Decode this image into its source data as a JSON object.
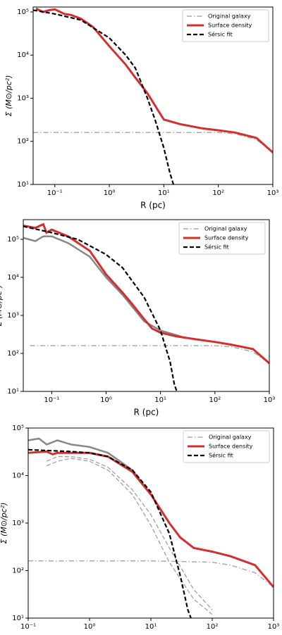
{
  "chart_data": [
    {
      "type": "line",
      "xlabel": "R (pc)",
      "ylabel": "Σ (M⊙/pc²)",
      "xscale": "log",
      "yscale": "log",
      "xlim": [
        0.04,
        1000
      ],
      "ylim": [
        10,
        130000
      ],
      "xticks": [
        {
          "value": 0.1,
          "label": "10⁻¹"
        },
        {
          "value": 1,
          "label": "10⁰"
        },
        {
          "value": 10,
          "label": "10¹"
        },
        {
          "value": 100,
          "label": "10²"
        },
        {
          "value": 1000,
          "label": "10³"
        }
      ],
      "yticks": [
        {
          "value": 10,
          "label": "10¹"
        },
        {
          "value": 100,
          "label": "10²"
        },
        {
          "value": 1000,
          "label": "10³"
        },
        {
          "value": 10000,
          "label": "10⁴"
        },
        {
          "value": 100000,
          "label": "10⁵"
        }
      ],
      "legend": "upper right",
      "series": [
        {
          "name": "Original galaxy",
          "color": "#aaaaaa",
          "style": "dashdot",
          "width": 1.5,
          "x": [
            0.04,
            1,
            10,
            100,
            200,
            500,
            1000
          ],
          "values": [
            160,
            160,
            160,
            160,
            150,
            110,
            55
          ]
        },
        {
          "name": "Surface density",
          "color": "#d32f2f",
          "style": "solid",
          "width": 3,
          "x": [
            0.045,
            0.06,
            0.08,
            0.1,
            0.15,
            0.2,
            0.3,
            0.5,
            1,
            2,
            3,
            5,
            8,
            10,
            20,
            50,
            100,
            200,
            500,
            1000
          ],
          "values": [
            120000,
            100000,
            110000,
            115000,
            90000,
            85000,
            70000,
            45000,
            16000,
            6000,
            3000,
            1300,
            500,
            320,
            250,
            200,
            180,
            160,
            120,
            55
          ]
        },
        {
          "name": "Sérsic fit",
          "color": "#000000",
          "style": "dashed",
          "width": 2.2,
          "x": [
            0.04,
            0.1,
            0.3,
            1,
            2,
            3,
            5,
            7,
            10,
            13,
            15
          ],
          "values": [
            110000,
            90000,
            65000,
            25000,
            10000,
            5000,
            1000,
            300,
            70,
            18,
            10
          ]
        }
      ]
    },
    {
      "type": "line",
      "xlabel": "R (pc)",
      "ylabel": "Σ (M⊙/pc²)",
      "xscale": "log",
      "yscale": "log",
      "xlim": [
        0.03,
        1000
      ],
      "ylim": [
        10,
        330000
      ],
      "xticks": [
        {
          "value": 0.1,
          "label": "10⁻¹"
        },
        {
          "value": 1,
          "label": "10⁰"
        },
        {
          "value": 10,
          "label": "10¹"
        },
        {
          "value": 100,
          "label": "10²"
        },
        {
          "value": 1000,
          "label": "10³"
        }
      ],
      "yticks": [
        {
          "value": 10,
          "label": "10¹"
        },
        {
          "value": 100,
          "label": "10²"
        },
        {
          "value": 1000,
          "label": "10³"
        },
        {
          "value": 10000,
          "label": "10⁴"
        },
        {
          "value": 100000,
          "label": "10⁵"
        }
      ],
      "legend": "upper right",
      "series": [
        {
          "color": "#888888",
          "style": "solid",
          "width": 2.5,
          "x": [
            0.03,
            0.05,
            0.07,
            0.1,
            0.2,
            0.5,
            1,
            2,
            5,
            10,
            20,
            30
          ],
          "values": [
            110000,
            90000,
            120000,
            120000,
            80000,
            35000,
            10000,
            3500,
            700,
            400,
            300,
            250
          ]
        },
        {
          "name": "Original galaxy",
          "color": "#aaaaaa",
          "style": "dashdot",
          "width": 1.5,
          "x": [
            0.04,
            1,
            10,
            100,
            200,
            500,
            1000
          ],
          "values": [
            160,
            160,
            160,
            160,
            150,
            110,
            55
          ]
        },
        {
          "name": "Surface density",
          "color": "#d32f2f",
          "style": "solid",
          "width": 3,
          "x": [
            0.03,
            0.05,
            0.07,
            0.08,
            0.1,
            0.2,
            0.5,
            1,
            2,
            3,
            5,
            7,
            10,
            20,
            50,
            100,
            200,
            500,
            1000
          ],
          "values": [
            230000,
            200000,
            250000,
            150000,
            180000,
            120000,
            50000,
            12000,
            4000,
            2000,
            800,
            450,
            350,
            280,
            230,
            200,
            170,
            130,
            55
          ]
        },
        {
          "name": "Sérsic fit",
          "color": "#000000",
          "style": "dashed",
          "width": 2.2,
          "x": [
            0.03,
            0.1,
            0.3,
            1,
            2,
            5,
            10,
            15,
            18,
            20
          ],
          "values": [
            220000,
            150000,
            100000,
            40000,
            18000,
            3000,
            400,
            60,
            15,
            10
          ]
        }
      ]
    },
    {
      "type": "line",
      "ylabel": "Σ (M⊙/pc²)",
      "xscale": "log",
      "yscale": "log",
      "xlim": [
        0.1,
        1000
      ],
      "ylim": [
        10,
        100000
      ],
      "xticks": [
        {
          "value": 0.1,
          "label": "10⁻¹"
        },
        {
          "value": 1,
          "label": "10⁰"
        },
        {
          "value": 10,
          "label": "10¹"
        },
        {
          "value": 100,
          "label": "10²"
        },
        {
          "value": 1000,
          "label": "10³"
        }
      ],
      "yticks": [
        {
          "value": 10,
          "label": "10¹"
        },
        {
          "value": 100,
          "label": "10²"
        },
        {
          "value": 1000,
          "label": "10³"
        },
        {
          "value": 10000,
          "label": "10⁴"
        },
        {
          "value": 100000,
          "label": "10⁵"
        }
      ],
      "legend": "upper right",
      "series": [
        {
          "color": "#888888",
          "style": "solid",
          "width": 2.5,
          "x": [
            0.1,
            0.15,
            0.2,
            0.3,
            0.5,
            1,
            2,
            5,
            10,
            20
          ],
          "values": [
            55000,
            60000,
            45000,
            55000,
            45000,
            40000,
            30000,
            13000,
            4000,
            1000
          ]
        },
        {
          "color": "#999999",
          "style": "dashed",
          "width": 1.2,
          "x": [
            0.2,
            0.3,
            0.5,
            1,
            2,
            5,
            10,
            20,
            50,
            100
          ],
          "values": [
            20000,
            25000,
            25000,
            22000,
            15000,
            5000,
            1500,
            300,
            40,
            15
          ]
        },
        {
          "color": "#999999",
          "style": "dashed",
          "width": 1.2,
          "x": [
            0.2,
            0.3,
            0.5,
            1,
            2,
            5,
            10,
            20,
            50,
            100
          ],
          "values": [
            16000,
            20000,
            23000,
            20000,
            13000,
            4000,
            900,
            150,
            25,
            12
          ]
        },
        {
          "name": "Original galaxy",
          "color": "#aaaaaa",
          "style": "dashdot",
          "width": 1.5,
          "x": [
            0.1,
            1,
            10,
            100,
            200,
            500,
            1000
          ],
          "values": [
            160,
            160,
            160,
            150,
            130,
            90,
            45
          ]
        },
        {
          "name": "Surface density",
          "color": "#d32f2f",
          "style": "solid",
          "width": 3,
          "x": [
            0.1,
            0.2,
            0.25,
            0.3,
            0.5,
            1,
            2,
            5,
            10,
            20,
            30,
            50,
            100,
            200,
            500,
            1000
          ],
          "values": [
            30000,
            32000,
            28000,
            30000,
            30000,
            30000,
            25000,
            12000,
            4000,
            1000,
            500,
            300,
            250,
            200,
            130,
            45
          ]
        },
        {
          "name": "Sérsic fit",
          "color": "#000000",
          "style": "dashed",
          "width": 2.2,
          "x": [
            0.1,
            0.5,
            1,
            2,
            5,
            10,
            20,
            30,
            40,
            45
          ],
          "values": [
            35000,
            32000,
            30000,
            25000,
            13000,
            4500,
            600,
            80,
            15,
            10
          ]
        }
      ]
    }
  ]
}
